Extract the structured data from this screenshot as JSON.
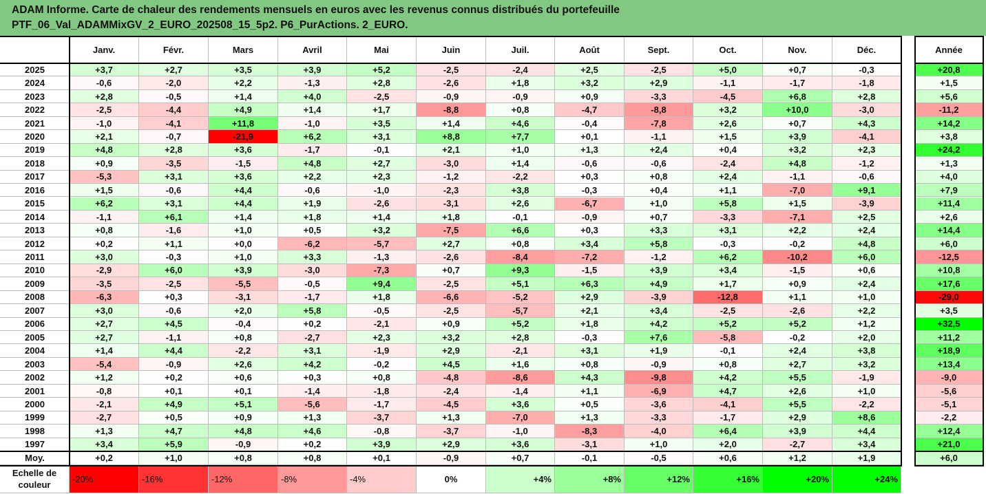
{
  "title": {
    "line1": "ADAM Informe. Carte de chaleur des rendements mensuels en euros avec les revenus connus distribués du portefeuille",
    "line2": "PTF_06_Val_ADAMMixGV_2_EURO_202508_15_5p2. P6_PurActions. 2_EURO."
  },
  "chart_data": {
    "type": "heatmap",
    "columns": [
      "Janv.",
      "Févr.",
      "Mars",
      "Avril",
      "Mai",
      "Juin",
      "Juil.",
      "Août",
      "Sept.",
      "Oct.",
      "Nov.",
      "Déc."
    ],
    "annual_label": "Année",
    "rows": [
      {
        "year": "2025",
        "values": [
          "+3,7",
          "+2,7",
          "+3,5",
          "+3,9",
          "+5,2",
          "-2,5",
          "-2,4",
          "+2,5",
          "-2,5",
          "+5,0",
          "+0,7",
          "-0,3"
        ],
        "annual": "+20,8"
      },
      {
        "year": "2024",
        "values": [
          "-0,6",
          "-2,0",
          "+2,2",
          "-1,3",
          "+2,8",
          "-2,6",
          "+1,8",
          "+3,2",
          "+2,9",
          "-1,1",
          "-1,7",
          "-1,8"
        ],
        "annual": "+1,5"
      },
      {
        "year": "2023",
        "values": [
          "+2,8",
          "-0,5",
          "+1,4",
          "+4,0",
          "-2,5",
          "-0,9",
          "-0,9",
          "+0,9",
          "-3,3",
          "-4,5",
          "+6,8",
          "+2,8"
        ],
        "annual": "+5,6"
      },
      {
        "year": "2022",
        "values": [
          "-2,5",
          "-4,4",
          "+4,9",
          "+1,4",
          "+1,7",
          "-8,8",
          "+0,8",
          "-4,7",
          "-8,8",
          "+3,2",
          "+10,0",
          "-3,0"
        ],
        "annual": "-11,2"
      },
      {
        "year": "2021",
        "values": [
          "-1,0",
          "-4,1",
          "+11,8",
          "-1,0",
          "+3,5",
          "+1,4",
          "+4,6",
          "-0,4",
          "-7,8",
          "+2,6",
          "+0,7",
          "+4,3"
        ],
        "annual": "+14,2"
      },
      {
        "year": "2020",
        "values": [
          "+2,1",
          "-0,7",
          "-21,9",
          "+6,2",
          "+3,1",
          "+8,8",
          "+7,7",
          "+0,1",
          "-1,1",
          "+1,5",
          "+3,9",
          "-4,1"
        ],
        "annual": "+3,8"
      },
      {
        "year": "2019",
        "values": [
          "+4,8",
          "+2,8",
          "+3,6",
          "-1,7",
          "-0,1",
          "+2,1",
          "+1,0",
          "+1,3",
          "+2,4",
          "+0,4",
          "+3,2",
          "+2,3"
        ],
        "annual": "+24,2"
      },
      {
        "year": "2018",
        "values": [
          "+0,9",
          "-3,5",
          "-1,5",
          "+4,8",
          "+2,7",
          "-3,0",
          "+1,4",
          "-0,6",
          "-0,6",
          "-2,4",
          "+4,8",
          "-1,2"
        ],
        "annual": "+1,3"
      },
      {
        "year": "2017",
        "values": [
          "-5,3",
          "+3,1",
          "+3,6",
          "+2,2",
          "+2,3",
          "-1,2",
          "-2,2",
          "+0,3",
          "+0,8",
          "+2,4",
          "-1,1",
          "-0,6"
        ],
        "annual": "+4,0"
      },
      {
        "year": "2016",
        "values": [
          "+1,5",
          "-0,6",
          "+4,4",
          "-0,6",
          "-1,0",
          "-2,3",
          "+3,8",
          "-0,3",
          "+0,4",
          "+1,1",
          "-7,0",
          "+9,1"
        ],
        "annual": "+7,9"
      },
      {
        "year": "2015",
        "values": [
          "+6,2",
          "+3,1",
          "+4,4",
          "+1,9",
          "-2,6",
          "-3,1",
          "+2,6",
          "-6,7",
          "+1,0",
          "+5,8",
          "+1,5",
          "-3,9"
        ],
        "annual": "+11,4"
      },
      {
        "year": "2014",
        "values": [
          "-1,1",
          "+6,1",
          "+1,4",
          "+1,8",
          "+1,4",
          "+1,8",
          "-0,1",
          "-0,9",
          "+0,7",
          "-3,3",
          "-7,1",
          "+2,5"
        ],
        "annual": "+2,6"
      },
      {
        "year": "2013",
        "values": [
          "+0,8",
          "-1,6",
          "+1,0",
          "+0,5",
          "+3,2",
          "-7,5",
          "+6,6",
          "+0,3",
          "+3,3",
          "+3,1",
          "+2,2",
          "+2,4"
        ],
        "annual": "+14,4"
      },
      {
        "year": "2012",
        "values": [
          "+0,2",
          "+1,1",
          "+0,0",
          "-6,2",
          "-5,7",
          "+2,7",
          "+0,8",
          "+3,4",
          "+5,8",
          "-0,3",
          "-0,2",
          "+4,8"
        ],
        "annual": "+6,0"
      },
      {
        "year": "2011",
        "values": [
          "+3,0",
          "-0,3",
          "+1,0",
          "+3,3",
          "-1,3",
          "-2,6",
          "-8,4",
          "-7,2",
          "-1,2",
          "+6,2",
          "-10,2",
          "+6,0"
        ],
        "annual": "-12,5"
      },
      {
        "year": "2010",
        "values": [
          "-2,9",
          "+6,0",
          "+3,9",
          "-3,0",
          "-7,3",
          "+0,7",
          "+9,3",
          "-1,5",
          "+3,9",
          "+3,4",
          "-1,5",
          "+0,6"
        ],
        "annual": "+10,8"
      },
      {
        "year": "2009",
        "values": [
          "-3,5",
          "-2,5",
          "-5,5",
          "-0,5",
          "+9,4",
          "-2,5",
          "+5,1",
          "+6,3",
          "+4,9",
          "+1,7",
          "+0,9",
          "+2,4"
        ],
        "annual": "+17,6"
      },
      {
        "year": "2008",
        "values": [
          "-6,3",
          "+0,3",
          "-3,1",
          "-1,7",
          "+1,8",
          "-6,6",
          "-5,2",
          "+2,9",
          "-3,9",
          "-12,8",
          "+1,1",
          "+1,0"
        ],
        "annual": "-29,0"
      },
      {
        "year": "2007",
        "values": [
          "+3,0",
          "-0,6",
          "+2,0",
          "+5,8",
          "-0,5",
          "-2,5",
          "-5,7",
          "+2,1",
          "+3,4",
          "-2,5",
          "-2,6",
          "+2,2"
        ],
        "annual": "+3,5"
      },
      {
        "year": "2006",
        "values": [
          "+2,7",
          "+4,5",
          "-0,4",
          "+0,2",
          "-2,1",
          "+0,9",
          "+5,2",
          "+1,8",
          "+4,2",
          "+5,2",
          "+5,2",
          "+1,2"
        ],
        "annual": "+32,5"
      },
      {
        "year": "2005",
        "values": [
          "+2,7",
          "-1,1",
          "+0,8",
          "-2,7",
          "+2,3",
          "+3,2",
          "+2,8",
          "-0,3",
          "+7,6",
          "-5,8",
          "-0,2",
          "+2,0"
        ],
        "annual": "+11,2"
      },
      {
        "year": "2004",
        "values": [
          "+1,4",
          "+4,4",
          "-2,2",
          "+3,1",
          "-1,9",
          "+2,9",
          "-2,1",
          "+3,1",
          "+1,9",
          "-0,1",
          "+2,4",
          "+3,8"
        ],
        "annual": "+18,9"
      },
      {
        "year": "2003",
        "values": [
          "-5,4",
          "-0,9",
          "+2,6",
          "+4,2",
          "-0,2",
          "+4,5",
          "+1,6",
          "+0,8",
          "-0,9",
          "+0,8",
          "+2,7",
          "+3,2"
        ],
        "annual": "+13,4"
      },
      {
        "year": "2002",
        "values": [
          "+1,2",
          "+0,2",
          "+0,6",
          "+0,3",
          "+0,8",
          "-4,8",
          "-8,6",
          "+4,3",
          "-9,8",
          "+4,2",
          "+5,5",
          "-1,9"
        ],
        "annual": "-9,0"
      },
      {
        "year": "2001",
        "values": [
          "-0,8",
          "+0,1",
          "+0,1",
          "-1,4",
          "-1,8",
          "-2,4",
          "-1,4",
          "+1,1",
          "-6,9",
          "+4,7",
          "+2,6",
          "+1,0"
        ],
        "annual": "-5,6"
      },
      {
        "year": "2000",
        "values": [
          "-2,1",
          "+4,9",
          "+5,1",
          "-5,6",
          "-1,7",
          "-4,5",
          "+3,6",
          "+0,5",
          "-3,6",
          "-4,1",
          "+5,5",
          "-2,2"
        ],
        "annual": "-5,1"
      },
      {
        "year": "1999",
        "values": [
          "-2,7",
          "+0,5",
          "+0,9",
          "+1,3",
          "-3,7",
          "+1,3",
          "-7,0",
          "+1,3",
          "-3,3",
          "-1,7",
          "+2,9",
          "+8,6"
        ],
        "annual": "-2,2"
      },
      {
        "year": "1998",
        "values": [
          "+1,3",
          "+4,7",
          "+4,8",
          "+4,6",
          "-0,8",
          "-3,7",
          "-1,0",
          "-8,3",
          "-4,0",
          "+6,4",
          "+3,9",
          "+4,4"
        ],
        "annual": "+12,4"
      },
      {
        "year": "1997",
        "values": [
          "+3,4",
          "+5,9",
          "-0,9",
          "+0,2",
          "+3,9",
          "+2,9",
          "+3,6",
          "-3,1",
          "+1,0",
          "+2,0",
          "-2,7",
          "+3,4"
        ],
        "annual": "+21,0"
      }
    ],
    "average": {
      "label": "Moy.",
      "values": [
        "+0,2",
        "+1,0",
        "+0,8",
        "+0,8",
        "+0,1",
        "-0,9",
        "+0,7",
        "-0,1",
        "-0,5",
        "+0,6",
        "+1,2",
        "+1,9"
      ],
      "annual": "+6,0"
    },
    "scale": {
      "label_line1": "Echelle de",
      "label_line2": "couleur",
      "steps": [
        "-20%",
        "-16%",
        "-12%",
        "-8%",
        "-4%",
        "0%",
        "+4%",
        "+8%",
        "+12%",
        "+16%",
        "+20%",
        "+24%"
      ],
      "step_values": [
        -20,
        -16,
        -12,
        -8,
        -4,
        0,
        4,
        8,
        12,
        16,
        20,
        24
      ]
    },
    "colors": {
      "negative_max": "#ff0000",
      "positive_max": "#00ff00",
      "neutral": "#ffffff",
      "title_bg": "#82c882",
      "annual_max_abs": 30
    }
  }
}
